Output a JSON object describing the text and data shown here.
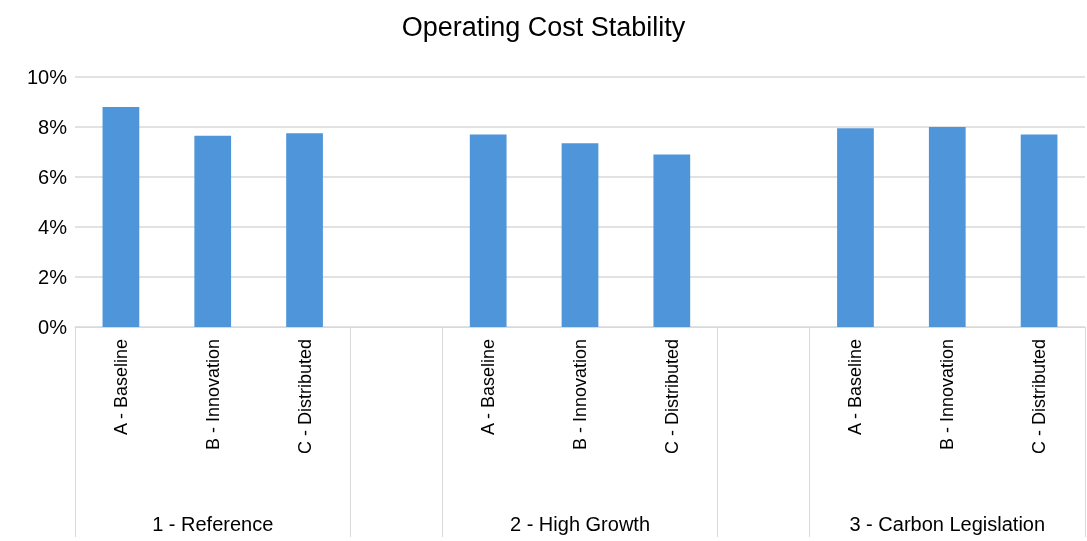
{
  "chart_data": {
    "type": "bar",
    "title": "Operating Cost Stability",
    "categories": [
      "A - Baseline",
      "B - Innovation",
      "C - Distributed",
      null,
      "A - Baseline",
      "B - Innovation",
      "C - Distributed",
      null,
      "A - Baseline",
      "B - Innovation",
      "C - Distributed"
    ],
    "values": [
      8.8,
      7.65,
      7.75,
      null,
      7.7,
      7.35,
      6.9,
      null,
      7.95,
      8.0,
      7.7
    ],
    "color": "#4f95d9",
    "ylim": [
      0,
      10
    ],
    "yticks": [
      {
        "value": 0,
        "label": "0%"
      },
      {
        "value": 2,
        "label": "2%"
      },
      {
        "value": 4,
        "label": "4%"
      },
      {
        "value": 6,
        "label": "6%"
      },
      {
        "value": 8,
        "label": "8%"
      },
      {
        "value": 10,
        "label": "10%"
      }
    ],
    "grid": "y",
    "annotations": [
      "1 - Reference",
      "2 - High Growth",
      "3 - Carbon Legislation"
    ]
  }
}
